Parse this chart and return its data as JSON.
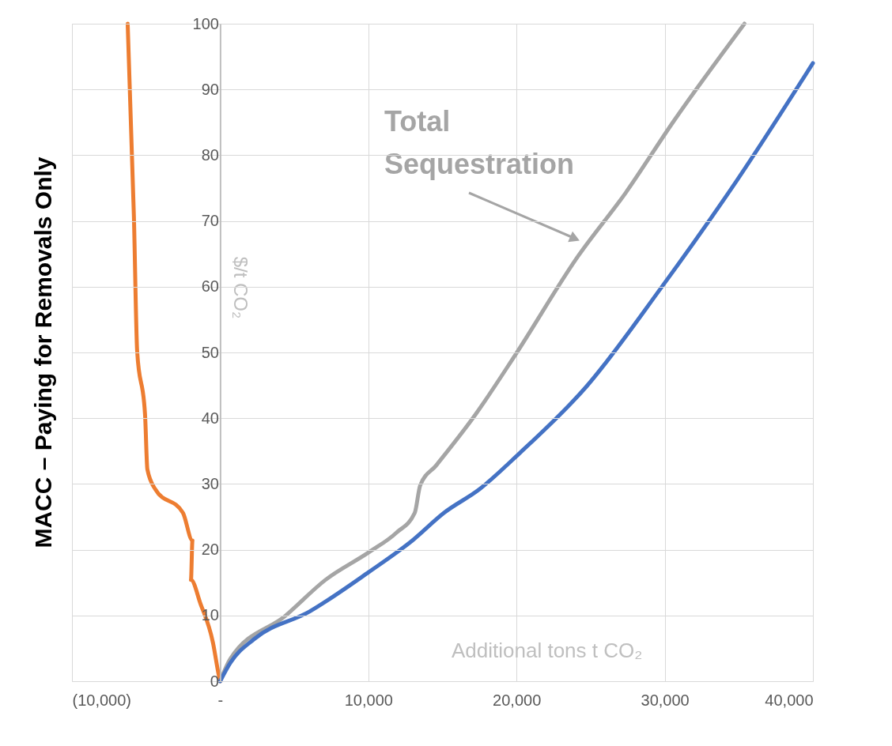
{
  "chart_data": {
    "type": "line",
    "title": "MACC – Paying for Removals Only",
    "xlabel": "Additional tons t CO₂",
    "ylabel": "$/t CO₂",
    "annotations": [
      "Total Sequestration"
    ],
    "xlim": [
      -10000,
      40000
    ],
    "xticks": [
      {
        "value": -10000,
        "label": "(10,000)"
      },
      {
        "value": 0,
        "label": "-"
      },
      {
        "value": 10000,
        "label": "10,000"
      },
      {
        "value": 20000,
        "label": "20,000"
      },
      {
        "value": 30000,
        "label": "30,000"
      },
      {
        "value": 40000,
        "label": "40,000"
      }
    ],
    "ylim": [
      0,
      100
    ],
    "yticks": [
      0,
      10,
      20,
      30,
      40,
      50,
      60,
      70,
      80,
      90,
      100
    ],
    "grid": true,
    "series": [
      {
        "color": "#ed7d31",
        "x": [
          -6240,
          -5820,
          -5600,
          -5070,
          -4910,
          -4380,
          -2510,
          -1870,
          -1970,
          -1330,
          -480,
          -100,
          0
        ],
        "values": [
          100,
          70.7,
          50.2,
          40.6,
          32.2,
          29.2,
          25.6,
          21.4,
          15.4,
          11.8,
          5.8,
          1,
          0
        ]
      },
      {
        "color": "#a5a5a5",
        "x": [
          0,
          690,
          4430,
          7100,
          10030,
          11900,
          13130,
          13500,
          14570,
          17240,
          19910,
          24170,
          27370,
          30580,
          35380
        ],
        "values": [
          0,
          3.4,
          10,
          15.4,
          19.6,
          22.6,
          25.6,
          29.8,
          32.8,
          40.6,
          49.6,
          64.7,
          74.3,
          85.1,
          100
        ]
      },
      {
        "color": "#4472c4",
        "x": [
          0,
          690,
          2290,
          6030,
          10030,
          12970,
          15100,
          17500,
          20170,
          24710,
          29780,
          34850,
          40000
        ],
        "values": [
          0,
          2.8,
          6.4,
          10.6,
          16.6,
          21.4,
          25.6,
          29.2,
          34.6,
          44.8,
          59.9,
          76.1,
          94
        ]
      }
    ]
  }
}
